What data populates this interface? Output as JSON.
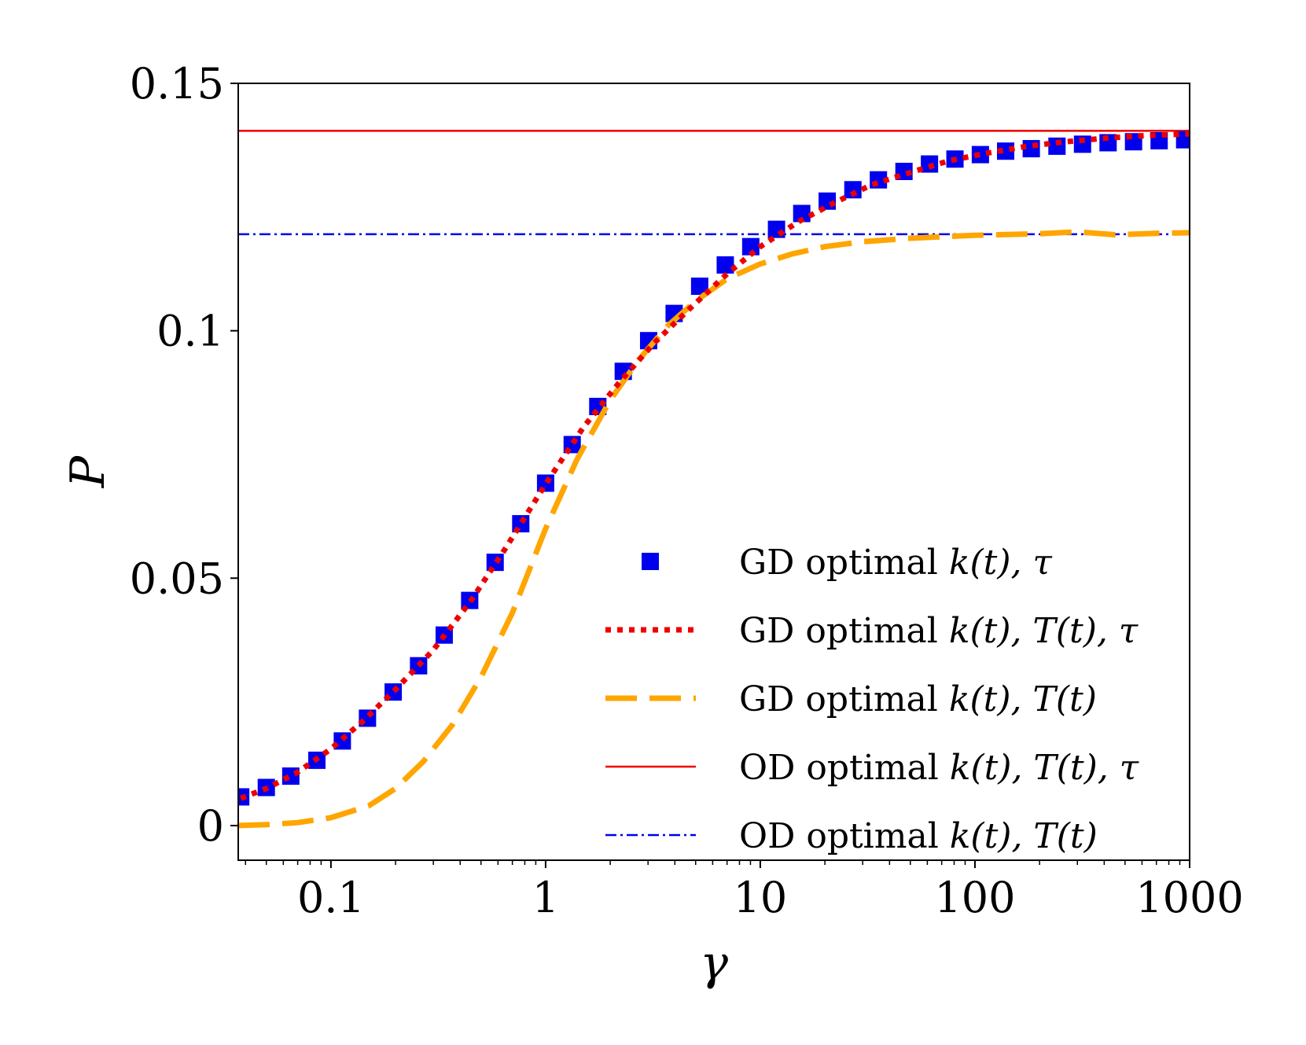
{
  "chart_data": {
    "type": "line",
    "title": "",
    "xlabel": "γ",
    "ylabel": "P",
    "xscale": "log",
    "xlim": [
      0.037,
      1000
    ],
    "ylim": [
      -0.007,
      0.15
    ],
    "grid": false,
    "legend_position": "lower-right",
    "x_ticks": [
      {
        "value": 0.1,
        "label": "0.1"
      },
      {
        "value": 1,
        "label": "1"
      },
      {
        "value": 10,
        "label": "10"
      },
      {
        "value": 100,
        "label": "100"
      },
      {
        "value": 1000,
        "label": "1000"
      }
    ],
    "y_ticks": [
      {
        "value": 0,
        "label": "0"
      },
      {
        "value": 0.05,
        "label": "0.05"
      },
      {
        "value": 0.1,
        "label": "0.1"
      },
      {
        "value": 0.15,
        "label": "0.15"
      }
    ],
    "series": [
      {
        "name": "GD optimal k(t), τ",
        "style": "square-markers",
        "color": "#0000ee",
        "x": [
          0.038,
          0.05,
          0.065,
          0.086,
          0.113,
          0.148,
          0.195,
          0.256,
          0.337,
          0.443,
          0.582,
          0.766,
          1.0,
          1.33,
          1.75,
          2.3,
          3.02,
          3.97,
          5.22,
          6.87,
          9.03,
          11.9,
          15.6,
          20.5,
          27.0,
          35.5,
          46.7,
          61.4,
          80.7,
          106,
          139,
          183,
          241,
          317,
          417,
          548,
          721,
          948
        ],
        "y": [
          0.0058,
          0.0077,
          0.01,
          0.0132,
          0.0171,
          0.0217,
          0.027,
          0.0323,
          0.0385,
          0.0455,
          0.0532,
          0.061,
          0.0692,
          0.077,
          0.0847,
          0.0918,
          0.098,
          0.1035,
          0.109,
          0.1133,
          0.117,
          0.1205,
          0.1237,
          0.1262,
          0.1285,
          0.1305,
          0.1322,
          0.1337,
          0.1347,
          0.1356,
          0.1363,
          0.1368,
          0.1373,
          0.1377,
          0.138,
          0.1382,
          0.1384,
          0.1386
        ]
      },
      {
        "name": "GD optimal k(t), T(t), τ",
        "style": "dotted",
        "color": "#ee0000",
        "x": [
          0.038,
          0.05,
          0.07,
          0.1,
          0.14,
          0.2,
          0.3,
          0.45,
          0.65,
          1.0,
          1.5,
          2.2,
          3.2,
          4.7,
          7.0,
          10,
          15,
          22,
          33,
          50,
          75,
          110,
          170,
          250,
          400,
          600,
          1000
        ],
        "y": [
          0.0055,
          0.0075,
          0.0108,
          0.0155,
          0.021,
          0.0275,
          0.0355,
          0.0455,
          0.056,
          0.069,
          0.0805,
          0.0895,
          0.0975,
          0.1045,
          0.1115,
          0.117,
          0.122,
          0.1258,
          0.1295,
          0.132,
          0.1343,
          0.1358,
          0.1372,
          0.1381,
          0.1389,
          0.1394,
          0.1398
        ]
      },
      {
        "name": "GD optimal k(t), T(t)",
        "style": "dashed",
        "color": "#ffa500",
        "x": [
          0.037,
          0.05,
          0.07,
          0.1,
          0.15,
          0.2,
          0.27,
          0.37,
          0.5,
          0.7,
          1.0,
          1.4,
          2.0,
          2.7,
          3.7,
          5.0,
          7.0,
          10,
          14,
          20,
          30,
          50,
          100,
          200,
          300,
          450,
          700,
          1000
        ],
        "y": [
          0.0,
          0.0002,
          0.0006,
          0.0016,
          0.004,
          0.0075,
          0.013,
          0.0205,
          0.03,
          0.043,
          0.06,
          0.074,
          0.086,
          0.094,
          0.101,
          0.106,
          0.1105,
          0.1135,
          0.1155,
          0.117,
          0.118,
          0.1187,
          0.1193,
          0.1196,
          0.12,
          0.1194,
          0.1197,
          0.1198
        ]
      },
      {
        "name": "OD optimal k(t), T(t), τ",
        "style": "solid",
        "color": "#ee0000",
        "constant_y": 0.1404
      },
      {
        "name": "OD optimal k(t), T(t)",
        "style": "dashdot",
        "color": "#0000ee",
        "constant_y": 0.1195
      }
    ],
    "legend": [
      {
        "label": "GD optimal k(t), τ",
        "main": "GD optimal ",
        "math": "k(t), τ"
      },
      {
        "label": "GD optimal k(t), T(t), τ",
        "main": "GD optimal ",
        "math": "k(t), T(t), τ"
      },
      {
        "label": "GD optimal k(t), T(t)",
        "main": "GD optimal ",
        "math": "k(t), T(t)"
      },
      {
        "label": "OD optimal k(t), T(t), τ",
        "main": "OD optimal ",
        "math": "k(t), T(t), τ"
      },
      {
        "label": "OD optimal k(t), T(t)",
        "main": "OD optimal ",
        "math": "k(t), T(t)"
      }
    ]
  }
}
